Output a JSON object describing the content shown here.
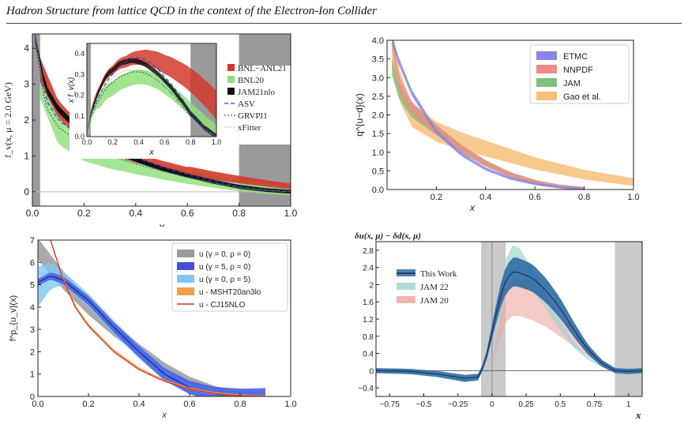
{
  "header": {
    "title": "Hadron Structure from lattice QCD in the context of the Electron-Ion Collider"
  },
  "colors": {
    "bnl21": "#d33a2c",
    "bnl20": "#8fe07a",
    "jam21": "#111111",
    "etmc": "#8a85e6",
    "nnpdf": "#f08a86",
    "jam_q": "#7fbf7b",
    "gao": "#f7c07a",
    "gamma0rho0": "#9a9a9a",
    "gamma5rho0": "#3f4fe0",
    "gamma0rho5": "#7fc6f5",
    "msht": "#f0a24a",
    "cj15": "#e0301e",
    "thiswork": "#2f6aa3",
    "jam22": "#9fd6d0",
    "jam20": "#f0a6a2"
  },
  "chart_data": [
    {
      "id": "p1",
      "type": "line",
      "ylabel": "f_v(x, μ = 2.0 GeV)",
      "xlabel": "x",
      "xlim": [
        0,
        1.0
      ],
      "ylim": [
        -0.4,
        4.4
      ],
      "xticks": [
        "0.0",
        "0.2",
        "0.4",
        "0.6",
        "0.8",
        "1.0"
      ],
      "yticks": [
        "0",
        "1",
        "2",
        "3",
        "4"
      ],
      "shaded_x": [
        [
          0,
          0.03
        ],
        [
          0.8,
          1.0
        ]
      ],
      "legend": [
        "BNL−ANL21",
        "BNL20",
        "JAM21nlo",
        "ASV",
        "GRVPI1",
        "xFitter"
      ],
      "inset": {
        "ylabel": "x f_v(x)",
        "xlabel": "x",
        "xticks": [
          "0.0",
          "0.2",
          "0.4",
          "0.6",
          "0.8",
          "1.0"
        ],
        "yticks": [
          "0.0",
          "0.1",
          "0.2",
          "0.3",
          "0.4"
        ],
        "ylim": [
          0,
          0.45
        ]
      },
      "series": [
        {
          "name": "BNL−ANL21",
          "x": [
            0.03,
            0.1,
            0.2,
            0.3,
            0.4,
            0.5,
            0.6,
            0.7,
            0.8,
            0.9,
            1.0
          ],
          "y": [
            3.4,
            2.3,
            1.6,
            1.2,
            0.95,
            0.75,
            0.58,
            0.45,
            0.34,
            0.24,
            0.15
          ]
        },
        {
          "name": "BNL20",
          "x": [
            0.03,
            0.1,
            0.2,
            0.3,
            0.4,
            0.5,
            0.6,
            0.7,
            0.8,
            0.9,
            1.0
          ],
          "y": [
            3.2,
            1.7,
            1.15,
            0.9,
            0.72,
            0.55,
            0.4,
            0.27,
            0.16,
            0.08,
            0.02
          ]
        },
        {
          "name": "JAM21nlo",
          "x": [
            0.01,
            0.05,
            0.1,
            0.2,
            0.3,
            0.4,
            0.5,
            0.6,
            0.7,
            0.8,
            0.9,
            1.0
          ],
          "y": [
            4.3,
            2.9,
            2.3,
            1.6,
            1.2,
            0.9,
            0.65,
            0.45,
            0.28,
            0.14,
            0.05,
            0.0
          ]
        },
        {
          "name": "ASV",
          "x": [
            0.01,
            0.05,
            0.1,
            0.2,
            0.3,
            0.4,
            0.5,
            0.6,
            0.7,
            0.8,
            0.9,
            1.0
          ],
          "y": [
            4.4,
            2.6,
            2.0,
            1.5,
            1.2,
            0.95,
            0.7,
            0.48,
            0.3,
            0.15,
            0.05,
            0.0
          ]
        },
        {
          "name": "GRVPI1",
          "x": [
            0.01,
            0.05,
            0.1,
            0.2,
            0.3,
            0.4,
            0.5,
            0.6,
            0.7,
            0.8,
            0.9,
            1.0
          ],
          "y": [
            4.2,
            2.4,
            1.8,
            1.3,
            1.0,
            0.78,
            0.58,
            0.4,
            0.25,
            0.12,
            0.04,
            0.0
          ]
        },
        {
          "name": "xFitter",
          "x": [
            0.01,
            0.05,
            0.1,
            0.2,
            0.3,
            0.4,
            0.5,
            0.6,
            0.7,
            0.8,
            0.9,
            1.0
          ],
          "y": [
            4.3,
            2.7,
            2.0,
            1.4,
            1.05,
            0.8,
            0.58,
            0.4,
            0.25,
            0.12,
            0.04,
            0.0
          ]
        }
      ]
    },
    {
      "id": "p2",
      "type": "area",
      "ylabel": "q^{u−d}(x)",
      "xlabel": "x",
      "xlim": [
        0.0,
        1.0
      ],
      "ylim": [
        0.0,
        4.0
      ],
      "xticks": [
        "0.2",
        "0.4",
        "0.6",
        "0.8",
        "1.0"
      ],
      "yticks": [
        "0.0",
        "0.5",
        "1.0",
        "1.5",
        "2.0",
        "2.5",
        "3.0",
        "3.5",
        "4.0"
      ],
      "legend": [
        "ETMC",
        "NNPDF",
        "JAM",
        "Gao et al."
      ],
      "series": [
        {
          "name": "ETMC",
          "x": [
            0.02,
            0.05,
            0.1,
            0.2,
            0.3,
            0.4,
            0.5,
            0.6,
            0.7,
            0.8
          ],
          "y": [
            4.0,
            3.4,
            2.6,
            1.55,
            0.95,
            0.55,
            0.3,
            0.15,
            0.06,
            0.02
          ]
        },
        {
          "name": "NNPDF",
          "x": [
            0.02,
            0.05,
            0.1,
            0.2,
            0.3,
            0.4,
            0.5,
            0.6,
            0.7,
            0.8
          ],
          "y": [
            4.0,
            2.8,
            2.2,
            1.6,
            1.1,
            0.7,
            0.4,
            0.2,
            0.08,
            0.02
          ]
        },
        {
          "name": "JAM",
          "x": [
            0.02,
            0.05,
            0.1,
            0.2,
            0.3,
            0.4,
            0.5,
            0.6,
            0.7,
            0.8
          ],
          "y": [
            3.3,
            2.6,
            2.1,
            1.6,
            1.1,
            0.7,
            0.4,
            0.2,
            0.08,
            0.02
          ]
        },
        {
          "name": "Gao et al.",
          "x": [
            0.02,
            0.05,
            0.1,
            0.2,
            0.3,
            0.4,
            0.5,
            0.6,
            0.7,
            0.8,
            0.9,
            1.0
          ],
          "y": [
            3.8,
            2.8,
            2.0,
            1.55,
            1.3,
            1.1,
            0.9,
            0.7,
            0.55,
            0.4,
            0.3,
            0.2
          ]
        }
      ]
    },
    {
      "id": "p3",
      "type": "line",
      "ylabel": "f^p_{u_v}(x)",
      "xlabel": "x",
      "xlim": [
        0.0,
        1.0
      ],
      "ylim": [
        0,
        7
      ],
      "xticks": [
        "0.0",
        "0.2",
        "0.4",
        "0.6",
        "0.8",
        "1.0"
      ],
      "yticks": [
        "0",
        "1",
        "2",
        "3",
        "4",
        "5",
        "6",
        "7"
      ],
      "legend": [
        "u (γ = 0, ρ = 0)",
        "u (γ = 5, ρ = 0)",
        "u (γ = 0, ρ = 5)",
        "u - MSHT20an3lo",
        "u - CJ15NLO"
      ],
      "series": [
        {
          "name": "u (γ = 0, ρ = 0)",
          "x": [
            0.0,
            0.05,
            0.1,
            0.2,
            0.3,
            0.4,
            0.5,
            0.6,
            0.7,
            0.8,
            0.9
          ],
          "y": [
            6.6,
            5.9,
            5.2,
            4.0,
            3.0,
            2.1,
            1.3,
            0.7,
            0.3,
            0.07,
            0.0
          ]
        },
        {
          "name": "u (γ = 5, ρ = 0)",
          "x": [
            0.0,
            0.05,
            0.1,
            0.2,
            0.3,
            0.4,
            0.5,
            0.6,
            0.7,
            0.8,
            0.9
          ],
          "y": [
            5.1,
            5.4,
            5.2,
            4.3,
            3.1,
            2.0,
            1.0,
            0.4,
            0.1,
            0.0,
            0.0
          ]
        },
        {
          "name": "u (γ = 0, ρ = 5)",
          "x": [
            0.0,
            0.05,
            0.1,
            0.2,
            0.3,
            0.4,
            0.5,
            0.6,
            0.7,
            0.8,
            0.9
          ],
          "y": [
            4.9,
            5.4,
            5.3,
            4.3,
            3.1,
            2.0,
            1.0,
            0.4,
            0.1,
            0.0,
            0.0
          ]
        },
        {
          "name": "u - MSHT20an3lo",
          "x": [
            0.05,
            0.1,
            0.15,
            0.2,
            0.3,
            0.4,
            0.5,
            0.6,
            0.7,
            0.8,
            0.9
          ],
          "y": [
            7.0,
            5.3,
            4.0,
            3.2,
            2.05,
            1.25,
            0.7,
            0.35,
            0.14,
            0.04,
            0.0
          ]
        },
        {
          "name": "u - CJ15NLO",
          "x": [
            0.05,
            0.1,
            0.15,
            0.2,
            0.3,
            0.4,
            0.5,
            0.6,
            0.7,
            0.8,
            0.9
          ],
          "y": [
            7.0,
            5.2,
            3.95,
            3.15,
            2.0,
            1.2,
            0.68,
            0.33,
            0.13,
            0.03,
            0.0
          ]
        }
      ]
    },
    {
      "id": "p4",
      "type": "line",
      "title": "δu(x, μ) − δd(x, μ)",
      "xlabel": "x",
      "xlim": [
        -0.85,
        1.1
      ],
      "ylim": [
        -0.6,
        3.0
      ],
      "xticks": [
        "−0.75",
        "−0.5",
        "−0.25",
        "0",
        "0.25",
        "0.5",
        "0.75",
        "1"
      ],
      "yticks": [
        "−0.4",
        "0",
        "0.4",
        "0.8",
        "1.2",
        "1.6",
        "2",
        "2.4",
        "2.8"
      ],
      "shaded_x": [
        [
          -0.08,
          0.1
        ],
        [
          0.9,
          1.1
        ]
      ],
      "legend": [
        "This Work",
        "JAM 22",
        "JAM 20"
      ],
      "series": [
        {
          "name": "This Work",
          "x": [
            -0.85,
            -0.6,
            -0.4,
            -0.2,
            -0.1,
            -0.05,
            0.0,
            0.05,
            0.1,
            0.15,
            0.2,
            0.3,
            0.4,
            0.5,
            0.6,
            0.7,
            0.8,
            0.9,
            1.0,
            1.1
          ],
          "y": [
            0.0,
            -0.02,
            -0.08,
            -0.18,
            -0.15,
            0.2,
            0.9,
            1.6,
            2.1,
            2.3,
            2.28,
            2.15,
            1.85,
            1.45,
            0.95,
            0.5,
            0.18,
            0.0,
            -0.02,
            0.0
          ]
        },
        {
          "name": "JAM 22",
          "x": [
            0.0,
            0.05,
            0.1,
            0.15,
            0.2,
            0.3,
            0.4,
            0.5,
            0.6,
            0.7,
            0.8,
            0.9
          ],
          "y": [
            0.0,
            1.2,
            2.3,
            2.6,
            2.55,
            2.1,
            1.6,
            1.05,
            0.6,
            0.3,
            0.1,
            0.0
          ]
        },
        {
          "name": "JAM 20",
          "x": [
            0.0,
            0.05,
            0.1,
            0.15,
            0.2,
            0.3,
            0.4,
            0.5,
            0.6,
            0.7,
            0.8,
            0.9
          ],
          "y": [
            0.0,
            0.9,
            1.5,
            1.7,
            1.7,
            1.55,
            1.35,
            1.05,
            0.75,
            0.45,
            0.2,
            0.05
          ]
        }
      ]
    }
  ]
}
